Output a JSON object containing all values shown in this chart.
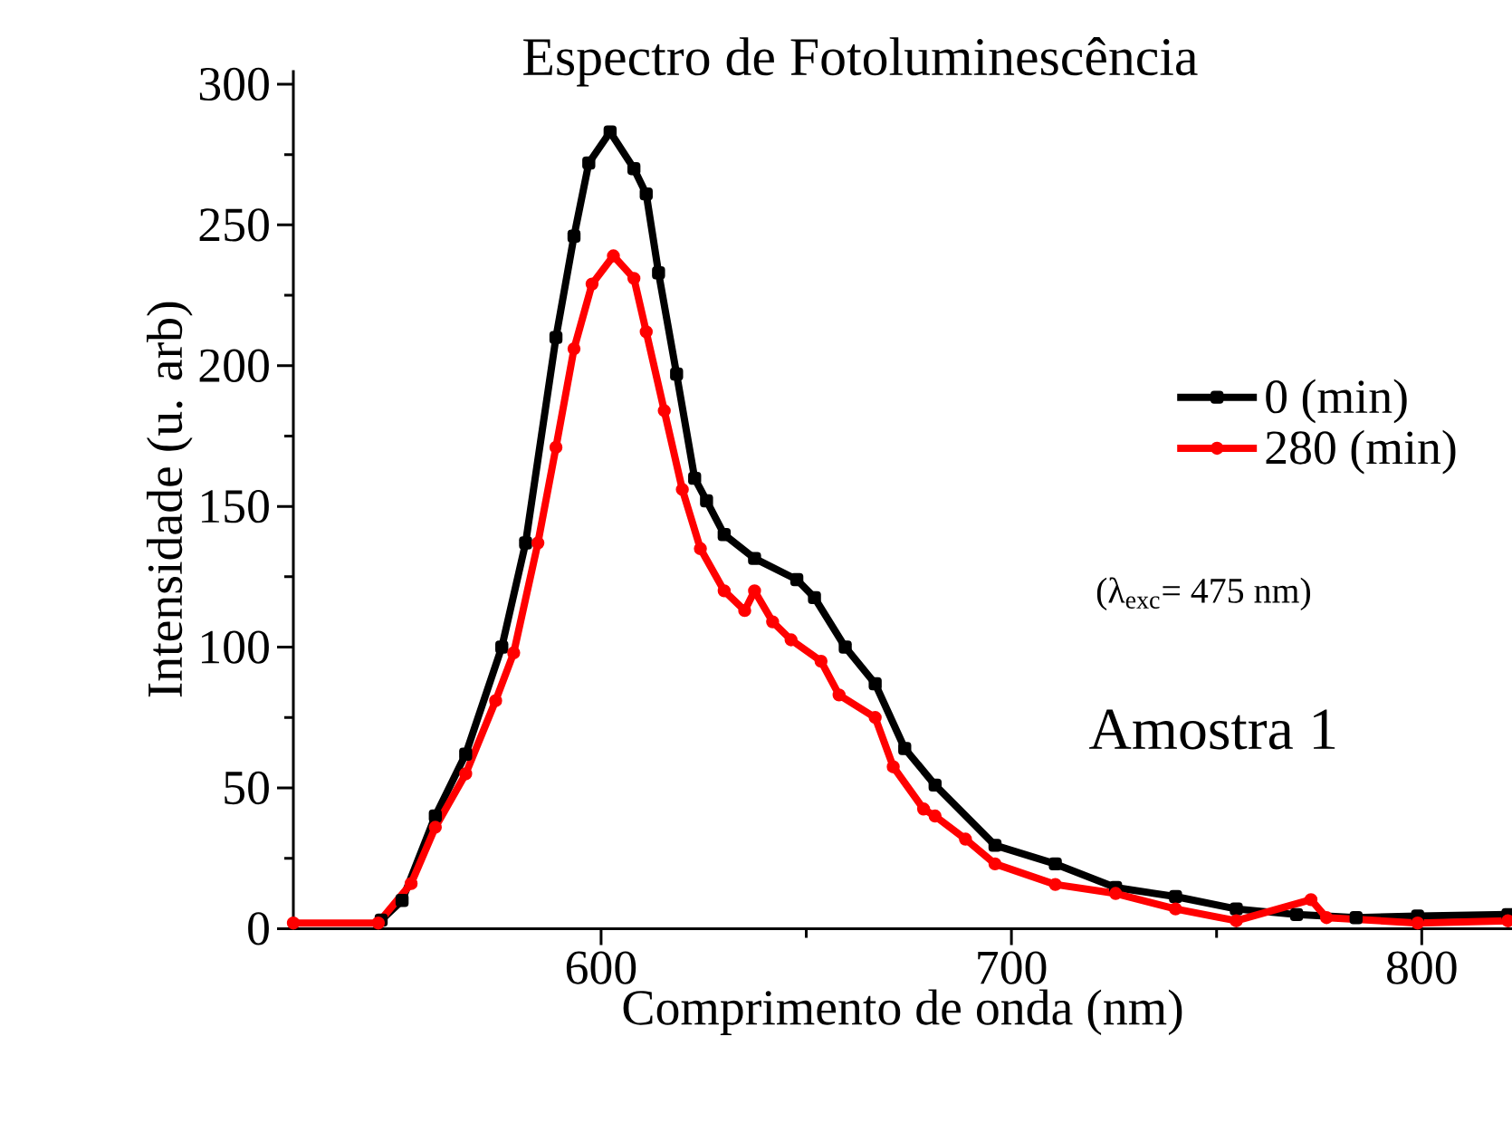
{
  "chart_data": {
    "type": "line",
    "title": "Espectro de Fotoluminescência",
    "xlabel": "Comprimento de onda (nm)",
    "ylabel": "Intensidade (u. arb)",
    "annotations": [
      "(λ$_{exc}$= 475 nm)",
      "Amostra 1"
    ],
    "xlim": [
      525,
      822
    ],
    "ylim": [
      0,
      305
    ],
    "xticks": [
      600,
      700,
      800
    ],
    "yticks": [
      0,
      50,
      100,
      150,
      200,
      250,
      300
    ],
    "legend": "right",
    "grid": false,
    "line_style": "solid",
    "series": [
      {
        "name": "0 (min)",
        "color": "#000000",
        "marker": "square",
        "x": [
          546.4,
          551.5,
          559.6,
          567,
          575.8,
          581.6,
          589,
          593.4,
          597,
          602.2,
          608,
          611,
          614,
          618.4,
          622.8,
          625.7,
          630,
          637.4,
          647.7,
          652,
          659.5,
          666.8,
          674,
          681.4,
          696,
          710.7,
          725.4,
          740,
          754.8,
          769.5,
          784,
          799,
          821
        ],
        "values": [
          3,
          10,
          40,
          62,
          100,
          137,
          210,
          246,
          272,
          283,
          270,
          261,
          233,
          197,
          160,
          152,
          140,
          131.5,
          124,
          117.6,
          100,
          87,
          64,
          51,
          29.6,
          23,
          14.6,
          11.4,
          7,
          5,
          3.9,
          4.5,
          5
        ]
      },
      {
        "name": "280 (min)",
        "color": "#ff0000",
        "marker": "circle",
        "x": [
          525,
          545.7,
          553.7,
          559.6,
          567,
          574.3,
          578.7,
          584.6,
          589,
          593.4,
          597.8,
          603,
          608,
          611,
          615.4,
          619.8,
          624.2,
          630,
          635,
          637.4,
          641.8,
          646.3,
          653.6,
          658,
          666.8,
          671.2,
          678.6,
          681.4,
          688.8,
          696,
          710.7,
          725.4,
          740,
          754.8,
          773,
          776.8,
          799,
          821
        ],
        "values": [
          2,
          2,
          16,
          36,
          55,
          81,
          98,
          137,
          171,
          206,
          229,
          239,
          231,
          212,
          184,
          156,
          135,
          120,
          113,
          120,
          109,
          102.6,
          95,
          83,
          75,
          57.5,
          42.5,
          40,
          31.8,
          23,
          15.7,
          12.5,
          7,
          2.8,
          10.3,
          3.9,
          2,
          2.8
        ]
      }
    ]
  }
}
